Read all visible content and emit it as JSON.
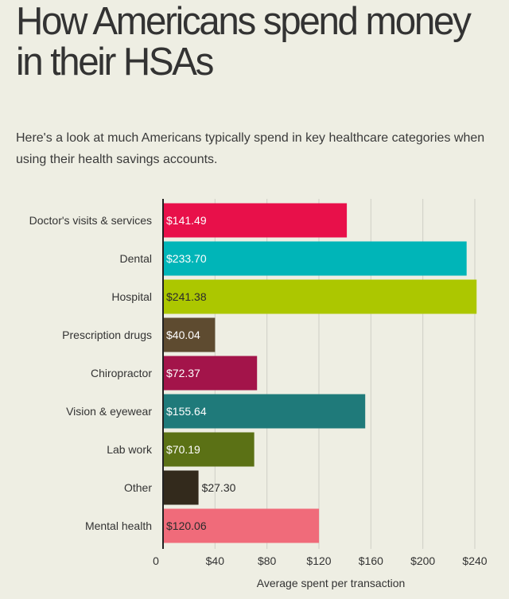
{
  "page": {
    "title": "How Americans spend money in their HSAs",
    "subtitle": "Here's a look at much Americans typically spend in key healthcare categories when using their health savings accounts."
  },
  "chart_data": {
    "type": "bar",
    "orientation": "horizontal",
    "categories": [
      "Doctor's visits & services",
      "Dental",
      "Hospital",
      "Prescription drugs",
      "Chiropractor",
      "Vision & eyewear",
      "Lab work",
      "Other",
      "Mental health"
    ],
    "values": [
      141.49,
      233.7,
      241.38,
      40.04,
      72.37,
      155.64,
      70.19,
      27.3,
      120.06
    ],
    "value_labels": [
      "$141.49",
      "$233.70",
      "$241.38",
      "$40.04",
      "$72.37",
      "$155.64",
      "$70.19",
      "$27.30",
      "$120.06"
    ],
    "colors": [
      "#e8104a",
      "#00b5b8",
      "#acc700",
      "#5e4b30",
      "#a3144a",
      "#1f7a7a",
      "#5b7115",
      "#332a1c",
      "#f06b7a"
    ],
    "value_label_colors": [
      "#ffffff",
      "#ffffff",
      "#2b2b2b",
      "#ffffff",
      "#ffffff",
      "#ffffff",
      "#ffffff",
      "#2b2b2b",
      "#2b2b2b"
    ],
    "xlim": [
      0,
      240
    ],
    "xticks": [
      0,
      40,
      80,
      120,
      160,
      200,
      240
    ],
    "xtick_labels": [
      "0",
      "$40",
      "$80",
      "$120",
      "$160",
      "$200",
      "$240"
    ],
    "xlabel": "Average spent per transaction",
    "ylabel": "",
    "grid": true,
    "gridline_color": "#cfcfc5",
    "legend": "none"
  }
}
